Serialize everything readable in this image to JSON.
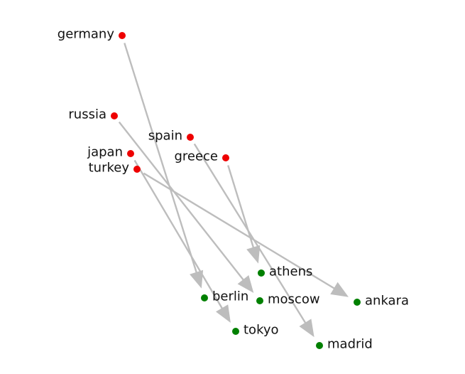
{
  "colors": {
    "source_node": "#ee0000",
    "target_node": "#008000",
    "edge": "#bdbdbd",
    "label": "#111111"
  },
  "nodes": [
    {
      "id": "germany",
      "label": "germany",
      "group": "source"
    },
    {
      "id": "russia",
      "label": "russia",
      "group": "source"
    },
    {
      "id": "spain",
      "label": "spain",
      "group": "source"
    },
    {
      "id": "japan",
      "label": "japan",
      "group": "source"
    },
    {
      "id": "greece",
      "label": "greece",
      "group": "source"
    },
    {
      "id": "turkey",
      "label": "turkey",
      "group": "source"
    },
    {
      "id": "athens",
      "label": "athens",
      "group": "target"
    },
    {
      "id": "berlin",
      "label": "berlin",
      "group": "target"
    },
    {
      "id": "moscow",
      "label": "moscow",
      "group": "target"
    },
    {
      "id": "ankara",
      "label": "ankara",
      "group": "target"
    },
    {
      "id": "tokyo",
      "label": "tokyo",
      "group": "target"
    },
    {
      "id": "madrid",
      "label": "madrid",
      "group": "target"
    }
  ],
  "edges": [
    {
      "from": "germany",
      "to": "berlin"
    },
    {
      "from": "russia",
      "to": "moscow"
    },
    {
      "from": "spain",
      "to": "madrid"
    },
    {
      "from": "japan",
      "to": "tokyo"
    },
    {
      "from": "greece",
      "to": "athens"
    },
    {
      "from": "turkey",
      "to": "ankara"
    }
  ]
}
